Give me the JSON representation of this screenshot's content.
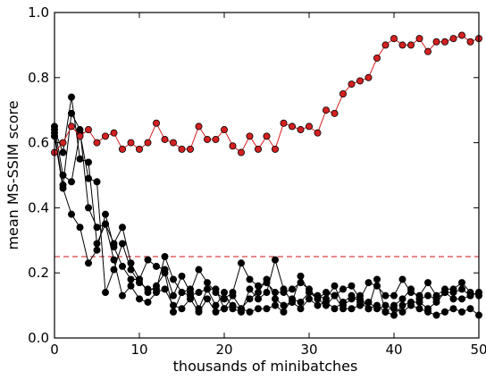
{
  "chart_data": {
    "type": "line",
    "title": "",
    "xlabel": "thousands of minibatches",
    "ylabel": "mean MS-SSIM score",
    "xlim": [
      0,
      50
    ],
    "ylim": [
      0.0,
      1.0
    ],
    "x_ticks": [
      0,
      10,
      20,
      30,
      40,
      50
    ],
    "y_ticks": [
      0.0,
      0.2,
      0.4,
      0.6,
      0.8,
      1.0
    ],
    "x_tick_labels": [
      "0",
      "10",
      "20",
      "30",
      "40",
      "50"
    ],
    "y_tick_labels": [
      "0.0",
      "0.2",
      "0.4",
      "0.6",
      "0.8",
      "1.0"
    ],
    "grid": false,
    "reference_line": {
      "y": 0.25,
      "style": "dashed",
      "color": "#e06060"
    },
    "series": [
      {
        "color": "#d42020",
        "x": [
          0,
          1,
          2,
          3,
          4,
          5,
          6,
          7,
          8,
          9,
          10,
          11,
          12,
          13,
          14,
          15,
          16,
          17,
          18,
          19,
          20,
          21,
          22,
          23,
          24,
          25,
          26,
          27,
          28,
          29,
          30,
          31,
          32,
          33,
          34,
          35,
          36,
          37,
          38,
          39,
          40,
          41,
          42,
          43,
          44,
          45,
          46,
          47,
          48,
          49,
          50
        ],
        "y": [
          0.57,
          0.6,
          0.65,
          0.62,
          0.64,
          0.6,
          0.62,
          0.63,
          0.58,
          0.6,
          0.58,
          0.6,
          0.66,
          0.61,
          0.6,
          0.58,
          0.58,
          0.65,
          0.61,
          0.61,
          0.64,
          0.59,
          0.57,
          0.62,
          0.58,
          0.62,
          0.58,
          0.66,
          0.65,
          0.64,
          0.65,
          0.63,
          0.7,
          0.69,
          0.75,
          0.78,
          0.79,
          0.8,
          0.86,
          0.9,
          0.92,
          0.9,
          0.9,
          0.92,
          0.88,
          0.91,
          0.91,
          0.92,
          0.93,
          0.91,
          0.92
        ]
      },
      {
        "color": "#000000",
        "x": [
          0,
          1,
          2,
          3,
          4,
          5,
          6,
          7,
          8,
          9,
          10,
          11,
          12,
          13,
          14,
          15,
          16,
          17,
          18,
          19,
          20,
          21,
          22,
          23,
          24,
          25,
          26,
          27,
          28,
          29,
          30,
          31,
          32,
          33,
          34,
          35,
          36,
          37,
          38,
          39,
          40,
          41,
          42,
          43,
          44,
          45,
          46,
          47,
          48,
          49,
          50
        ],
        "y": [
          0.64,
          0.57,
          0.74,
          0.55,
          0.54,
          0.29,
          0.35,
          0.24,
          0.13,
          0.16,
          0.12,
          0.11,
          0.14,
          0.15,
          0.1,
          0.09,
          0.12,
          0.08,
          0.12,
          0.08,
          0.09,
          0.1,
          0.09,
          0.08,
          0.09,
          0.09,
          0.1,
          0.08,
          0.12,
          0.11,
          0.14,
          0.12,
          0.1,
          0.13,
          0.09,
          0.09,
          0.1,
          0.11,
          0.09,
          0.1,
          0.09,
          0.08,
          0.1,
          0.09,
          0.08,
          0.07,
          0.08,
          0.09,
          0.08,
          0.09,
          0.07
        ]
      },
      {
        "color": "#000000",
        "x": [
          0,
          1,
          2,
          3,
          4,
          5,
          6,
          7,
          8,
          9,
          10,
          11,
          12,
          13,
          14,
          15,
          16,
          17,
          18,
          19,
          20,
          21,
          22,
          23,
          24,
          25,
          26,
          27,
          28,
          29,
          30,
          31,
          32,
          33,
          34,
          35,
          36,
          37,
          38,
          39,
          40,
          41,
          42,
          43,
          44,
          45,
          46,
          47,
          48,
          49,
          50
        ],
        "y": [
          0.65,
          0.5,
          0.48,
          0.63,
          0.49,
          0.48,
          0.14,
          0.21,
          0.29,
          0.21,
          0.17,
          0.15,
          0.15,
          0.25,
          0.18,
          0.14,
          0.13,
          0.14,
          0.15,
          0.1,
          0.14,
          0.09,
          0.08,
          0.15,
          0.12,
          0.14,
          0.24,
          0.15,
          0.11,
          0.19,
          0.14,
          0.13,
          0.12,
          0.16,
          0.1,
          0.12,
          0.13,
          0.09,
          0.18,
          0.08,
          0.1,
          0.12,
          0.15,
          0.12,
          0.13,
          0.12,
          0.14,
          0.14,
          0.15,
          0.13,
          0.14
        ]
      },
      {
        "color": "#000000",
        "x": [
          0,
          1,
          2,
          3,
          4,
          5,
          6,
          7,
          8,
          9,
          10,
          11,
          12,
          13,
          14,
          15,
          16,
          17,
          18,
          19,
          20,
          21,
          22,
          23,
          24,
          25,
          26,
          27,
          28,
          29,
          30,
          31,
          32,
          33,
          34,
          35,
          36,
          37,
          38,
          39,
          40,
          41,
          42,
          43,
          44,
          45,
          46,
          47,
          48,
          49,
          50
        ],
        "y": [
          0.62,
          0.46,
          0.38,
          0.34,
          0.23,
          0.27,
          0.38,
          0.28,
          0.22,
          0.18,
          0.18,
          0.14,
          0.16,
          0.2,
          0.08,
          0.14,
          0.15,
          0.09,
          0.15,
          0.15,
          0.09,
          0.13,
          0.09,
          0.12,
          0.14,
          0.18,
          0.12,
          0.1,
          0.11,
          0.09,
          0.12,
          0.1,
          0.11,
          0.09,
          0.11,
          0.13,
          0.11,
          0.09,
          0.1,
          0.08,
          0.07,
          0.1,
          0.11,
          0.11,
          0.09,
          0.11,
          0.14,
          0.12,
          0.12,
          0.13,
          0.14
        ]
      },
      {
        "color": "#000000",
        "x": [
          0,
          1,
          2,
          3,
          4,
          5,
          6,
          7,
          8,
          9,
          10,
          11,
          12,
          13,
          14,
          15,
          16,
          17,
          18,
          19,
          20,
          21,
          22,
          23,
          24,
          25,
          26,
          27,
          28,
          29,
          30,
          31,
          32,
          33,
          34,
          35,
          36,
          37,
          38,
          39,
          40,
          41,
          42,
          43,
          44,
          45,
          46,
          47,
          48,
          49,
          50
        ],
        "y": [
          0.63,
          0.47,
          0.69,
          0.64,
          0.4,
          0.34,
          0.35,
          0.29,
          0.34,
          0.23,
          0.18,
          0.24,
          0.22,
          0.21,
          0.13,
          0.19,
          0.14,
          0.21,
          0.17,
          0.14,
          0.12,
          0.14,
          0.23,
          0.18,
          0.16,
          0.17,
          0.14,
          0.14,
          0.15,
          0.17,
          0.15,
          0.12,
          0.14,
          0.13,
          0.15,
          0.16,
          0.12,
          0.17,
          0.16,
          0.13,
          0.13,
          0.18,
          0.14,
          0.13,
          0.17,
          0.13,
          0.15,
          0.15,
          0.17,
          0.14,
          0.13
        ]
      }
    ]
  }
}
